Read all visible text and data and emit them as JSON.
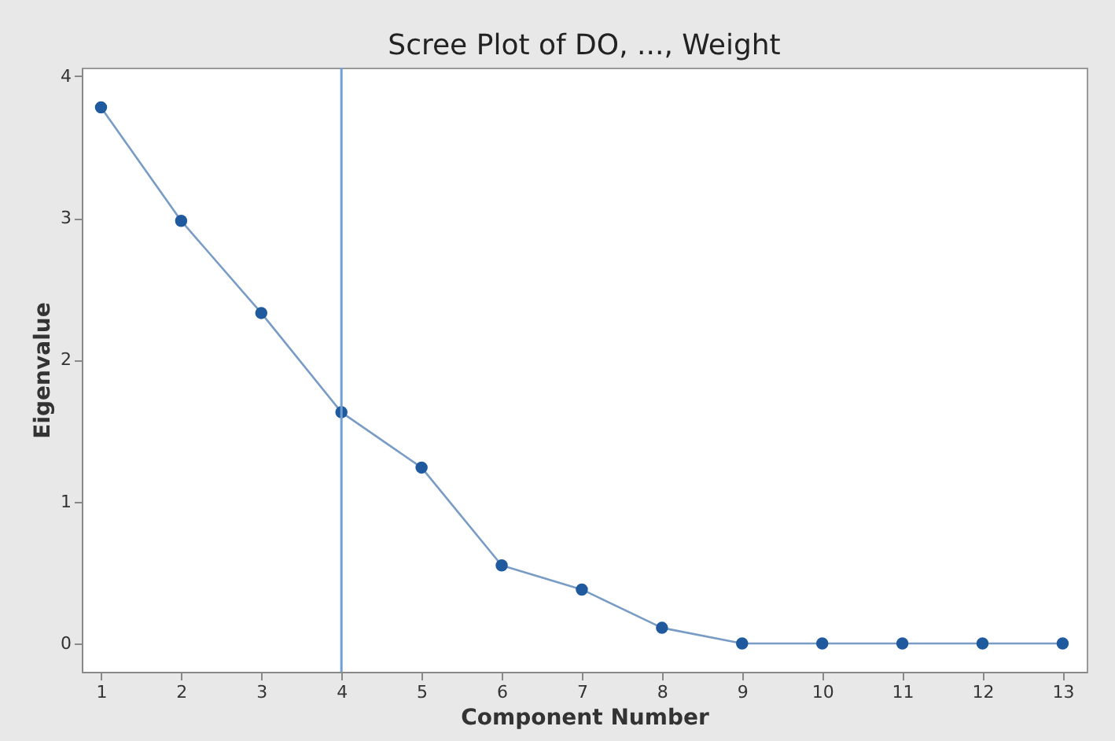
{
  "chart_data": {
    "type": "line",
    "title": "Scree Plot of DO, ..., Weight",
    "xlabel": "Component Number",
    "ylabel": "Eigenvalue",
    "x": [
      1,
      2,
      3,
      4,
      5,
      6,
      7,
      8,
      9,
      10,
      11,
      12,
      13
    ],
    "series": [
      {
        "color": "#1f5a9e",
        "values": [
          3.78,
          2.98,
          2.33,
          1.63,
          1.24,
          0.55,
          0.38,
          0.11,
          0,
          0,
          0,
          0,
          0
        ]
      }
    ],
    "xlim": [
      0.76,
      13.3
    ],
    "xticks": [
      1,
      2,
      3,
      4,
      5,
      6,
      7,
      8,
      9,
      10,
      11,
      12,
      13
    ],
    "ylim": [
      -0.2,
      4.06
    ],
    "yticks": [
      0,
      1,
      2,
      3,
      4
    ],
    "ref_lines": [
      {
        "axis": "x",
        "value": 4,
        "color": "#6f9fd3"
      }
    ],
    "marker": "circle",
    "line_style": "solid",
    "grid": false
  }
}
